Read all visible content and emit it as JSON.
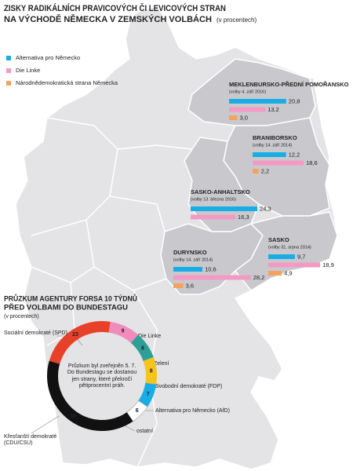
{
  "chart_data": [
    {
      "type": "bar",
      "title": [
        "ZISKY RADIKÁLNÍCH PRAVICOVÝCH ČI LEVICOVÝCH STRAN",
        "NA VÝCHODĚ NĚMECKA V ZEMSKÝCH VOLBÁCH"
      ],
      "subtitle": "(v procentech)",
      "categories": [
        "MEKLENBURSKO-PŘEDNÍ POMOŘANSKO",
        "BRANIBORSKO",
        "SASKO-ANHALTSKO",
        "DURYNSKO",
        "SASKO"
      ],
      "category_notes": [
        "(volby 4. září 2016)",
        "(volby 14. září 2014)",
        "(volby 13. března 2016)",
        "(volby 14. září 2014)",
        "(volby 31. srpna 2014)"
      ],
      "series": [
        {
          "name": "Alternativa pro Německo",
          "color": "#19ade6",
          "values": [
            20.8,
            12.2,
            24.3,
            10.6,
            9.7
          ],
          "value_labels": [
            "20,8",
            "12,2",
            "24,3",
            "10,6",
            "9,7"
          ]
        },
        {
          "name": "Die Linke",
          "color": "#f29ac4",
          "values": [
            13.2,
            18.6,
            16.3,
            28.2,
            18.9
          ],
          "value_labels": [
            "13,2",
            "18,6",
            "16,3",
            "28,2",
            "18,9"
          ]
        },
        {
          "name": "Národnědemokratická strana Německa",
          "color": "#f5a25f",
          "values": [
            3.0,
            2.2,
            null,
            3.6,
            4.9
          ],
          "value_labels": [
            "3,0",
            "2,2",
            null,
            "3,6",
            "4,9"
          ]
        }
      ]
    },
    {
      "type": "donut",
      "title": [
        "PRŮZKUM AGENTURY FORSA 10 TÝDNŮ",
        "PŘED VOLBAMI DO BUNDESTAGU"
      ],
      "subtitle": "(v procentech)",
      "note": "Průzkum byl zveřejněn 5. 7. Do Bundestagu se dostanou jen strany, které překročí pětiprocentní práh.",
      "categories": [
        "Sociální demokraté (SPD)",
        "Die Linke",
        "Zelení",
        "Svobodní demokraté (FDP)",
        "Alternativa pro Německo (AfD)",
        "ostatní",
        "Křesťanští demokraté (CDU/CSU)"
      ],
      "values": [
        23,
        9,
        8,
        8,
        7,
        6,
        39
      ],
      "colors": [
        "#e8412a",
        "#f08cbc",
        "#2e9e96",
        "#f6c41a",
        "#19ade6",
        "#ffffff",
        "#111111"
      ]
    }
  ]
}
